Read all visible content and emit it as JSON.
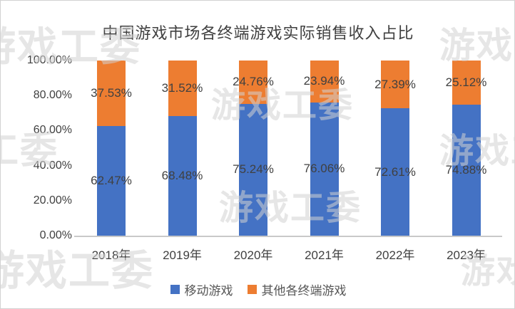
{
  "title": "中国游戏市场各终端游戏实际销售收入占比",
  "chart_data": {
    "type": "bar",
    "stacked": true,
    "title": "中国游戏市场各终端游戏实际销售收入占比",
    "categories": [
      "2018年",
      "2019年",
      "2020年",
      "2021年",
      "2022年",
      "2023年"
    ],
    "series": [
      {
        "name": "移动游戏",
        "color": "#4472C4",
        "values": [
          62.47,
          68.48,
          75.24,
          76.06,
          72.61,
          74.88
        ]
      },
      {
        "name": "其他各终端游戏",
        "color": "#ED7D31",
        "values": [
          37.53,
          31.52,
          24.76,
          23.94,
          27.39,
          25.12
        ]
      }
    ],
    "data_labels": {
      "移动游戏": [
        "62.47%",
        "68.48%",
        "75.24%",
        "76.06%",
        "72.61%",
        "74.88%"
      ],
      "其他各终端游戏": [
        "37.53%",
        "31.52%",
        "24.76%",
        "23.94%",
        "27.39%",
        "25.12%"
      ]
    },
    "y_ticks": [
      "100.00%",
      "80.00%",
      "60.00%",
      "40.00%",
      "20.00%",
      "0.00%"
    ],
    "ylim": [
      0,
      100
    ],
    "grid": false,
    "legend_position": "bottom",
    "value_suffix": "%"
  },
  "watermark": {
    "text": "游戏工委"
  },
  "colors": {
    "mobile_blue": "#4472C4",
    "other_orange": "#ED7D31",
    "label_text": "#404040",
    "legend_text": "#565656",
    "axis_line": "#c9c9c9"
  }
}
